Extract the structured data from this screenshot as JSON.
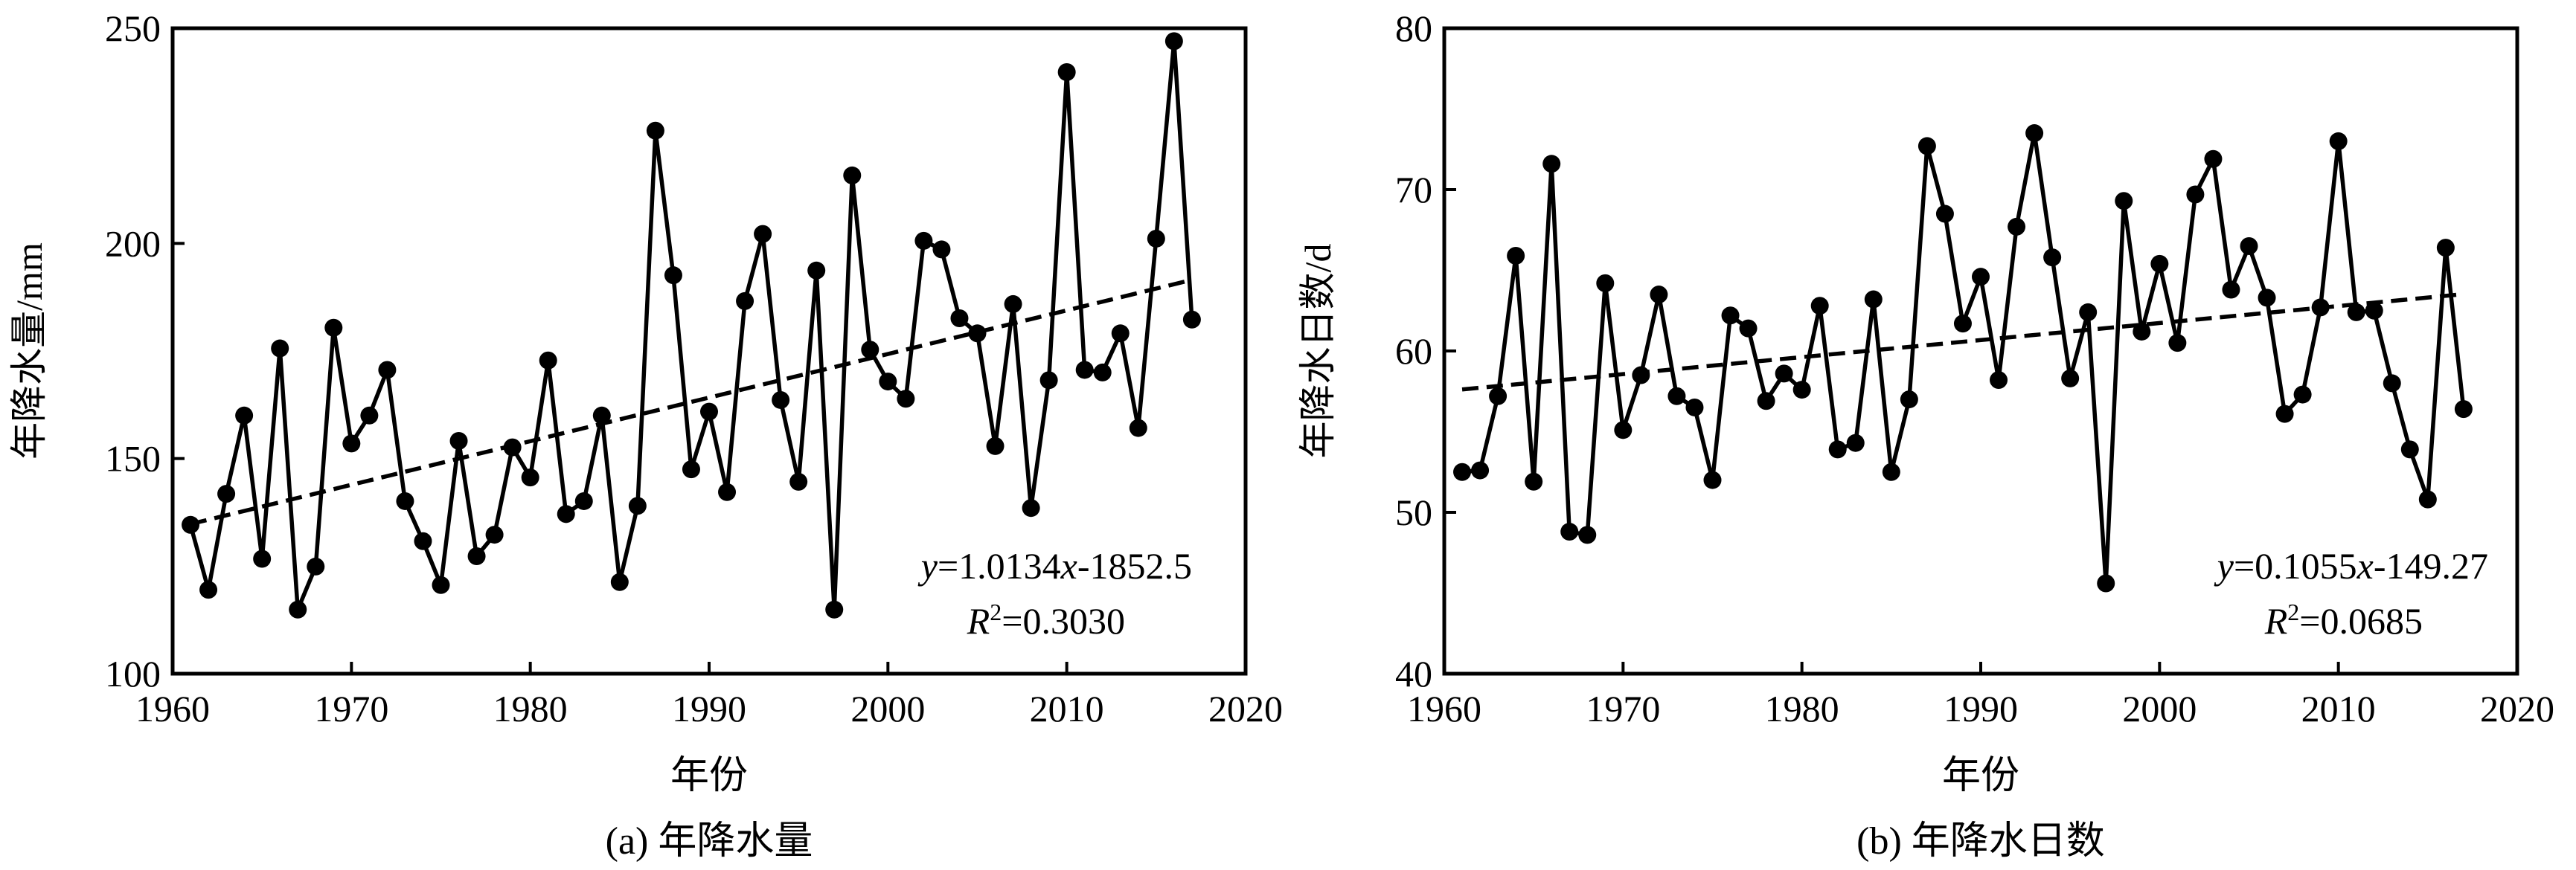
{
  "chart_data": [
    {
      "type": "line",
      "caption": "(a) 年降水量",
      "xlabel": "年份",
      "ylabel": "年降水量/mm",
      "xlim": [
        1960,
        2020
      ],
      "ylim": [
        100,
        250
      ],
      "xticks": [
        1960,
        1970,
        1980,
        1990,
        2000,
        2010,
        2020
      ],
      "yticks": [
        100,
        150,
        200,
        250
      ],
      "grid": false,
      "x": [
        1961,
        1962,
        1963,
        1964,
        1965,
        1966,
        1967,
        1968,
        1969,
        1970,
        1971,
        1972,
        1973,
        1974,
        1975,
        1976,
        1977,
        1978,
        1979,
        1980,
        1981,
        1982,
        1983,
        1984,
        1985,
        1986,
        1987,
        1988,
        1989,
        1990,
        1991,
        1992,
        1993,
        1994,
        1995,
        1996,
        1997,
        1998,
        1999,
        2000,
        2001,
        2002,
        2003,
        2004,
        2005,
        2006,
        2007,
        2008,
        2009,
        2010,
        2011,
        2012,
        2013,
        2014,
        2015,
        2016,
        2017
      ],
      "values": [
        134.6,
        119.5,
        141.8,
        160.0,
        126.7,
        175.6,
        114.9,
        124.9,
        180.4,
        153.5,
        160.0,
        170.6,
        140.1,
        130.8,
        120.6,
        154.1,
        127.3,
        132.3,
        152.6,
        145.6,
        172.8,
        137.1,
        140.1,
        160.0,
        121.3,
        139.0,
        226.2,
        192.6,
        147.5,
        160.9,
        142.2,
        186.6,
        202.2,
        163.6,
        144.6,
        193.7,
        114.9,
        215.8,
        175.3,
        167.9,
        163.9,
        200.6,
        198.6,
        182.6,
        179.1,
        152.9,
        185.9,
        138.5,
        168.2,
        239.8,
        170.6,
        170.0,
        179.1,
        157.1,
        201.1,
        247.0,
        182.3
      ],
      "trendline": {
        "style": "dashed",
        "slope": 1.0134,
        "intercept": -1852.5
      },
      "annotation": {
        "equation_var": "y",
        "equation_mid": "=1.0134",
        "equation_x": "x",
        "equation_rest": "-1852.5",
        "r2_label": "R",
        "r2_sup": "2",
        "r2_value": "=0.3030"
      }
    },
    {
      "type": "line",
      "caption": "(b) 年降水日数",
      "xlabel": "年份",
      "ylabel": "年降水日数/d",
      "xlim": [
        1960,
        2020
      ],
      "ylim": [
        40,
        80
      ],
      "xticks": [
        1960,
        1970,
        1980,
        1990,
        2000,
        2010,
        2020
      ],
      "yticks": [
        40,
        50,
        60,
        70,
        80
      ],
      "grid": false,
      "x": [
        1961,
        1962,
        1963,
        1964,
        1965,
        1966,
        1967,
        1968,
        1969,
        1970,
        1971,
        1972,
        1973,
        1974,
        1975,
        1976,
        1977,
        1978,
        1979,
        1980,
        1981,
        1982,
        1983,
        1984,
        1985,
        1986,
        1987,
        1988,
        1989,
        1990,
        1991,
        1992,
        1993,
        1994,
        1995,
        1996,
        1997,
        1998,
        1999,
        2000,
        2001,
        2002,
        2003,
        2004,
        2005,
        2006,
        2007,
        2008,
        2009,
        2010,
        2011,
        2012,
        2013,
        2014,
        2015,
        2016,
        2017
      ],
      "values": [
        52.5,
        52.6,
        57.2,
        65.9,
        51.9,
        71.6,
        48.8,
        48.6,
        64.2,
        55.1,
        58.5,
        63.5,
        57.2,
        56.5,
        52.0,
        62.2,
        61.4,
        56.9,
        58.6,
        57.6,
        62.8,
        53.9,
        54.3,
        63.2,
        52.5,
        57.0,
        72.7,
        68.5,
        61.7,
        64.6,
        58.2,
        67.7,
        73.5,
        65.8,
        58.3,
        62.4,
        45.6,
        69.3,
        61.2,
        65.4,
        60.5,
        69.7,
        71.9,
        63.8,
        66.5,
        63.3,
        56.1,
        57.3,
        62.7,
        73.0,
        62.4,
        62.5,
        58.0,
        53.9,
        50.8,
        66.4,
        56.4
      ],
      "trendline": {
        "style": "dashed",
        "slope": 0.1055,
        "intercept": -149.27
      },
      "annotation": {
        "equation_var": "y",
        "equation_mid": "=0.1055",
        "equation_x": "x",
        "equation_rest": "-149.27",
        "r2_label": "R",
        "r2_sup": "2",
        "r2_value": "=0.0685"
      }
    }
  ]
}
